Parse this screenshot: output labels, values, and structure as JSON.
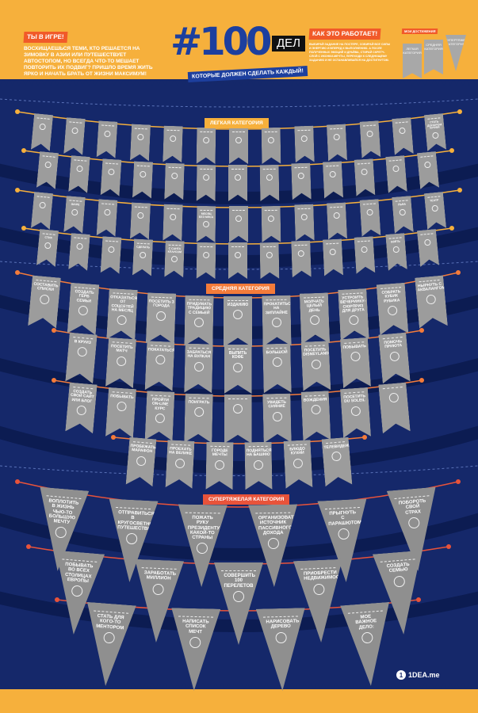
{
  "header": {
    "left_title": "ТЫ В ИГРЕ!",
    "left_text": "Восхищаешься теми, кто решается на зимовку в Азии или путешествует автостопом, но всегда что-то мешает повторить их подвиг? Пришло время жить ярко и начать брать от жизни максимум!",
    "logo_number": "#100",
    "logo_word": "ДЕЛ",
    "logo_subtitle": "КОТОРЫЕ ДОЛЖЕН СДЕЛАТЬ КАЖДЫЙ!",
    "right_title": "КАК ЭТО РАБОТАЕТ!",
    "right_text": "Выбирай задание на постере, собирай все силы и энергию и вперед к выполнению. А после полученных эмоций и драйва, стирай скретч-слой с иконки-мечты, переходи к следующему заданию и не останавливайся на достигнутом.",
    "achievements_title": "МОИ ДОСТИЖЕНИЯ",
    "achievements": [
      "ЛЕГКАЯ КАТЕГОРИЯ",
      "СРЕДНЯЯ КАТЕГОРИЯ",
      "СУПЕРТЯЖЕЛАЯ КАТЕГОРИЯ"
    ]
  },
  "colors": {
    "background": "#f6b03c",
    "navy": "#15286a",
    "flag": "#9c9c9c",
    "easy_string": "#f6b03c",
    "medium_string": "#f47b3a",
    "super_string": "#e8533a"
  },
  "categories": [
    {
      "title": "ЛЕГКАЯ КАТЕГОРИЯ",
      "color": "#f6b03c",
      "rows": [
        [
          "",
          "",
          "",
          "",
          "",
          "",
          "",
          "",
          "",
          "",
          "",
          "",
          "СТАТЬ ДОНОРОМ КРОВИ"
        ],
        [
          "",
          "",
          "",
          "",
          "",
          "",
          "",
          "",
          "",
          "",
          "",
          "",
          ""
        ],
        [
          "",
          "ШАРЕ",
          "",
          "",
          "",
          "МЕСЯЦ БЕЗ МЯСА",
          "",
          "",
          "",
          "",
          "",
          "ЛЬВА",
          "ТЕАТР"
        ],
        [
          "СТИХ",
          "",
          "",
          "СДЕЛАТЬ",
          "С САНТА КЛАУСОМ",
          "",
          "",
          "",
          "",
          "",
          "",
          "ВЗЯТЬ",
          ""
        ]
      ]
    },
    {
      "title": "СРЕДНЯЯ КАТЕГОРИЯ",
      "color": "#f47b3a",
      "rows": [
        [
          "СОСТАВИТЬ СПИСКИ",
          "СОЗДАТЬ ГЕРБ СЕМЬИ",
          "ОТКАЗАТЬСЯ ОТ СОЦСЕТЕЙ НА МЕСЯЦ",
          "ПОСЕТИТЬ 3 ГОРОДА",
          "ПРИДУМАТЬ ТРАДИЦИЮ С СЕМЬЕЙ",
          "ИЗДАНИЮ",
          "ПРОКАТИТЬСЯ НА ЗИПЛАЙНЕ",
          "МОЛЧАТЬ ЦЕЛЫЙ ДЕНЬ",
          "УСТРОИТЬ ВЕЧЕРИНКУ-СЮРПРИЗ ДЛЯ ДРУГА",
          "СОБРАТЬ КУБИК РУБИКА",
          "НЫРНУТЬ С АКВАЛАНГОМ"
        ],
        [
          "В КРУИЗ",
          "ПОСЕТИТЬ МАТЧ",
          "ПОКАТАТЬСЯ",
          "ЗАБРАТЬСЯ НА ВУЛКАН",
          "ВЫПИТЬ КОФЕ",
          "БОЛЬШОЙ",
          "ПОСЕТИТЬ DISNEYLAND",
          "ПОБЫВАТЬ",
          "ПОМОЧЬ ПРИЮТА"
        ],
        [
          "СОЗДАТЬ СВОЙ САЙТ ИЛИ БЛОГ",
          "ПОБЫВАТЬ",
          "ПРОЙТИ ON-LINE КУРС",
          "ПОИГРАТЬ",
          "",
          "УВИДЕТЬ СИЯНИЕ",
          "ВОЖДЕНИЯ",
          "ПОСЕТИТЬ DU SOLEIL",
          ""
        ],
        [
          "ПРОБЕЖАТЬ МАРАФОН",
          "ПРОЕХАТЬ НА ВЕЛИКЕ",
          "ГОРОДЕ МЕЧТЫ",
          "ПОДНЯТЬСЯ НА БАШНЮ",
          "БЛЮДО КУХНИ",
          "ТЕЛЕВИДЕНИИ"
        ]
      ]
    },
    {
      "title": "СУПЕРТЯЖЕЛАЯ КАТЕГОРИЯ",
      "color": "#e8533a",
      "rows": [
        [
          "ВОПЛОТИТЬ В ЖИЗНЬ ЧЬЮ-ТО БОЛЬШУЮ МЕЧТУ",
          "ОТПРАВИТЬСЯ В КРУГОСВЕТНОЕ ПУТЕШЕСТВИЕ",
          "ПОЖАТЬ РУКУ ПРЕЗИДЕНТУ КАКОЙ-ТО СТРАНЫ",
          "ОРГАНИЗОВАТЬ ИСТОЧНИК ПАССИВНОГО ДОХОДА",
          "ПРЫГНУТЬ С ПАРАШЮТОМ",
          "ПОБОРОТЬ СВОЙ СТРАХ"
        ],
        [
          "ПОБЫВАТЬ ВО ВСЕХ СТОЛИЦАХ ЕВРОПЫ",
          "ЗАРАБОТАТЬ МИЛЛИОН",
          "СОВЕРШИТЬ 100 ПЕРЕЛЕТОВ",
          "ПРИОБРЕСТИ НЕДВИЖИМОСТЬ",
          "СОЗДАТЬ СЕМЬЮ"
        ],
        [
          "СТАТЬ ДЛЯ КОГО-ТО МЕНТОРОМ",
          "НАПИСАТЬ СПИСОК МЕЧТ",
          "НАРИСОВАТЬ ДЕРЕВО",
          "МОЕ ВАЖНОЕ ДЕЛО:"
        ]
      ]
    }
  ],
  "brand": "1DEA.me",
  "brand_mark": "1"
}
